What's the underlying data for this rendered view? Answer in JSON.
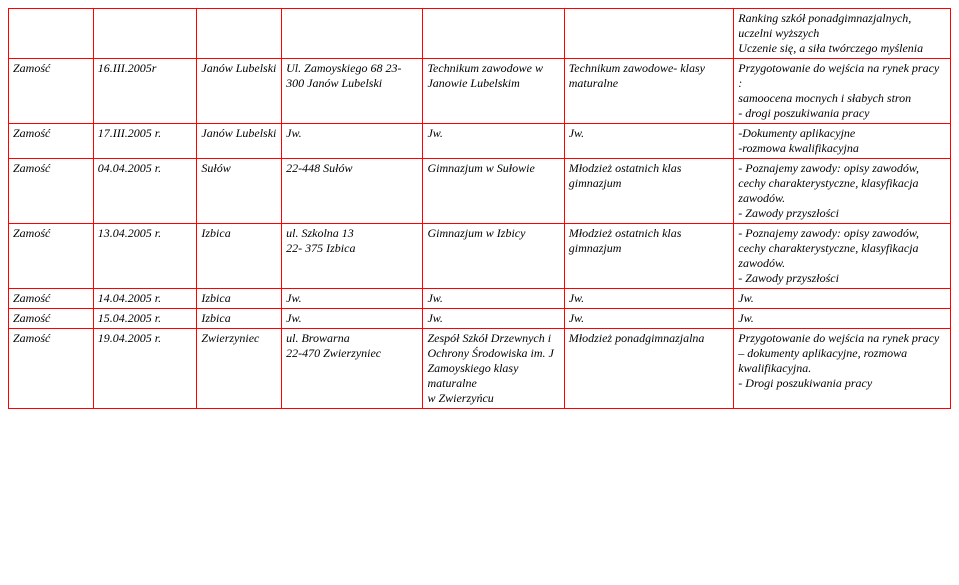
{
  "rows": [
    {
      "c0": "",
      "c1": "",
      "c2": "",
      "c3": "",
      "c4": "",
      "c5": "",
      "c6": "Ranking szkół ponadgimnazjalnych, uczelni wyższych\nUczenie się, a siła twórczego myślenia"
    },
    {
      "c0": "Zamość",
      "c1": "16.III.2005r",
      "c2": "Janów Lubelski",
      "c3": "Ul. Zamoyskiego 68 23-300 Janów Lubelski",
      "c4": "Technikum zawodowe w Janowie Lubelskim",
      "c5": "Technikum zawodowe- klasy maturalne",
      "c6": "Przygotowanie do wejścia na rynek pracy :\n  samoocena mocnych i słabych stron\n- drogi poszukiwania pracy"
    },
    {
      "c0": "Zamość",
      "c1": "17.III.2005 r.",
      "c2": "Janów Lubelski",
      "c3": "Jw.",
      "c4": "Jw.",
      "c5": "Jw.",
      "c6": "-Dokumenty aplikacyjne\n-rozmowa kwalifikacyjna"
    },
    {
      "c0": "Zamość",
      "c1": "04.04.2005 r.",
      "c2": "Sułów",
      "c3": "22-448 Sułów",
      "c4": "Gimnazjum  w Sułowie",
      "c5": "Młodzież ostatnich klas gimnazjum",
      "c6": "- Poznajemy zawody: opisy zawodów, cechy charakterystyczne, klasyfikacja zawodów.\n - Zawody przyszłości"
    },
    {
      "c0": "Zamość",
      "c1": "13.04.2005 r.",
      "c2": "Izbica",
      "c3": "ul. Szkolna 13\n22- 375 Izbica",
      "c4": "Gimnazjum  w Izbicy",
      "c5": "   Młodzież ostatnich     klas gimnazjum",
      "c6": "- Poznajemy zawody: opisy zawodów, cechy charakterystyczne, klasyfikacja zawodów.\n - Zawody przyszłości"
    },
    {
      "c0": "Zamość",
      "c1": "14.04.2005 r.",
      "c2": "Izbica",
      "c3": "Jw.",
      "c4": "Jw.",
      "c5": "Jw.",
      "c6": "Jw."
    },
    {
      "c0": "Zamość",
      "c1": "15.04.2005 r.",
      "c2": "Izbica",
      "c3": "Jw.",
      "c4": "Jw.",
      "c5": "Jw.",
      "c6": "Jw."
    },
    {
      "c0": "Zamość",
      "c1": "19.04.2005 r.",
      "c2": "Zwierzyniec",
      "c3": " ul. Browarna\n22-470 Zwierzyniec",
      "c4": "Zespół Szkół Drzewnych i Ochrony Środowiska  im. J Zamoyskiego klasy maturalne\nw Zwierzyńcu",
      "c5": "Młodzież ponadgimnazjalna",
      "c6": "Przygotowanie do wejścia na rynek pracy –    dokumenty aplikacyjne, rozmowa kwalifikacyjna.\n- Drogi poszukiwania pracy"
    }
  ]
}
